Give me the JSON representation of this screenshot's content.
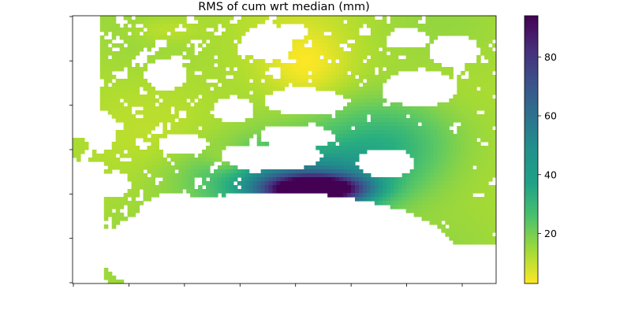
{
  "chart_data": {
    "type": "heatmap",
    "title": "RMS of cum wrt median (mm)",
    "xlabel": "",
    "ylabel": "",
    "colormap": "viridis_r",
    "colorbar": {
      "range": [
        3,
        94
      ],
      "ticks": [
        20,
        40,
        60,
        80
      ],
      "tick_labels": [
        "20",
        "40",
        "60",
        "80"
      ]
    },
    "x_tick_count": 8,
    "y_tick_count": 7,
    "x_tick_labels_visible": false,
    "y_tick_labels_visible": false,
    "grid": false,
    "peak_value": 94,
    "background_value": 15,
    "masked_color": "#ffffff"
  }
}
